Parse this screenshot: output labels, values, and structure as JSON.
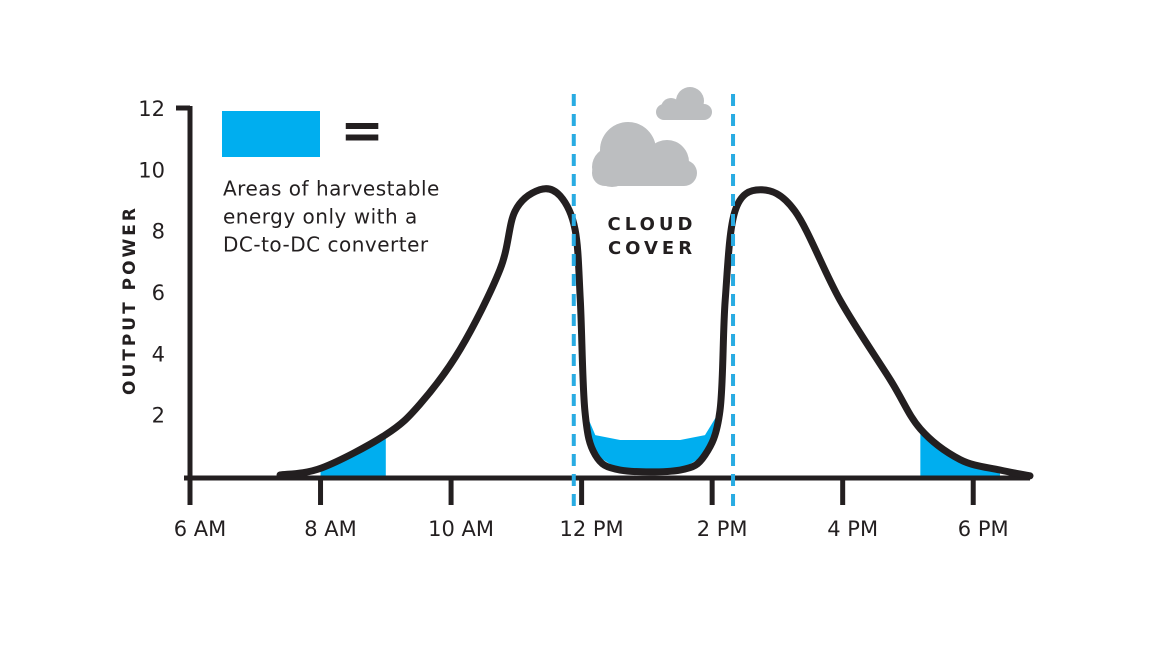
{
  "chart_data": {
    "type": "line",
    "y_label": "OUTPUT POWER",
    "xlim": [
      6,
      18.87
    ],
    "ylim": [
      0,
      12
    ],
    "xticks": [
      {
        "value": 6,
        "label": "6 AM"
      },
      {
        "value": 8,
        "label": "8 AM"
      },
      {
        "value": 10,
        "label": "10 AM"
      },
      {
        "value": 12,
        "label": "12 PM"
      },
      {
        "value": 14,
        "label": "2 PM"
      },
      {
        "value": 16,
        "label": "4 PM"
      },
      {
        "value": 18,
        "label": "6 PM"
      }
    ],
    "yticks": [
      2,
      4,
      6,
      8,
      10,
      12
    ],
    "color": "#231f20",
    "x": [
      7.38,
      8.02,
      8.99,
      9.52,
      10.14,
      10.75,
      10.98,
      11.36,
      11.67,
      11.9,
      11.98,
      12.05,
      12.21,
      12.59,
      13.51,
      13.89,
      14.12,
      14.2,
      14.35,
      14.74,
      15.27,
      15.96,
      16.73,
      17.19,
      17.8,
      18.41,
      18.87
    ],
    "values": [
      0.1,
      0.33,
      1.4,
      2.4,
      4.2,
      6.8,
      8.7,
      9.4,
      9.2,
      8.1,
      5.8,
      2.2,
      0.75,
      0.26,
      0.26,
      0.75,
      2.2,
      5.8,
      8.7,
      9.4,
      8.7,
      5.8,
      3.2,
      1.6,
      0.6,
      0.26,
      0.07
    ],
    "shaded_color": "#00aeef",
    "shaded_areas": [
      {
        "x": [
          8.0,
          8.5,
          9.0
        ],
        "upper": [
          0.33,
          0.8,
          1.4
        ],
        "lower": [
          0,
          0,
          0
        ]
      },
      {
        "x": [
          12.05,
          12.21,
          12.59,
          13.51,
          13.89,
          14.12
        ],
        "upper": [
          2.2,
          1.4,
          1.24,
          1.24,
          1.4,
          2.2
        ],
        "lower": [
          2.2,
          0.75,
          0.26,
          0.26,
          0.75,
          2.2
        ]
      },
      {
        "x": [
          17.19,
          17.5,
          17.8,
          18.1,
          18.41
        ],
        "upper": [
          1.6,
          1.0,
          0.6,
          0.4,
          0.26
        ],
        "lower": [
          0,
          0,
          0,
          0,
          0
        ]
      }
    ],
    "legend": {
      "symbol": "=",
      "text_lines": [
        "Areas of harvestable",
        "energy only with a",
        "DC-to-DC converter"
      ]
    },
    "cloud_cover": {
      "x_start": 11.88,
      "x_end": 14.32,
      "color": "#29abe2",
      "label_lines": [
        "CLOUD",
        "COVER"
      ]
    }
  }
}
